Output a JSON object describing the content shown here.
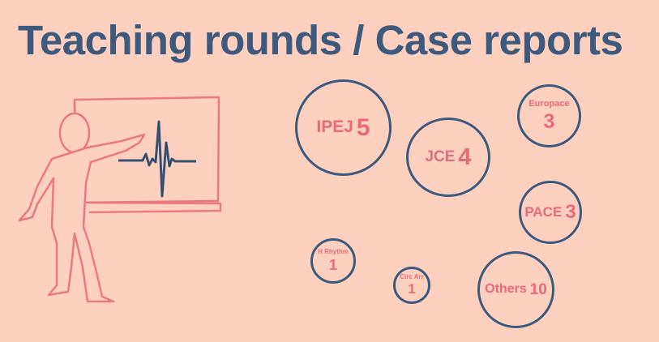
{
  "title": "Teaching rounds / Case reports",
  "colors": {
    "background": "#fdd0c0",
    "title": "#3d5a7d",
    "circle": "#3d5a7d",
    "label": "#e86a7a",
    "figure": "#e87a80"
  },
  "illustration": {
    "figure": "person-pointing-at-board-icon",
    "board_content": "ecg-trace-icon"
  },
  "journals": [
    {
      "name": "IPEJ",
      "count": "5"
    },
    {
      "name": "JCE",
      "count": "4"
    },
    {
      "name": "Europace",
      "count": "3"
    },
    {
      "name": "PACE",
      "count": "3"
    },
    {
      "name": "H Rhythm",
      "count": "1"
    },
    {
      "name": "Circ Arr",
      "count": "1"
    },
    {
      "name": "Others",
      "count": "10"
    }
  ]
}
